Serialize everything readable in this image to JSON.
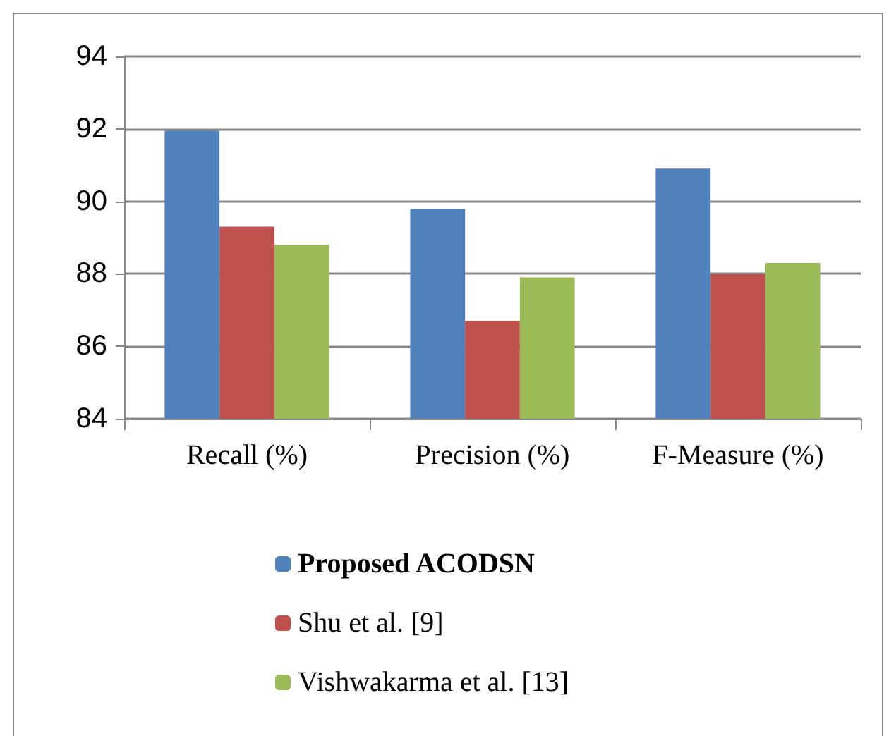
{
  "chart_data": {
    "type": "bar",
    "categories": [
      "Recall (%)",
      "Precision (%)",
      "F-Measure (%)"
    ],
    "series": [
      {
        "name": "Proposed ACODSN",
        "color": "#4f81bd",
        "values": [
          91.95,
          89.8,
          90.9
        ]
      },
      {
        "name": "Shu et al. [9]",
        "color": "#c0504d",
        "values": [
          89.3,
          86.7,
          88.0
        ]
      },
      {
        "name": "Vishwakarma et al. [13]",
        "color": "#9bbb59",
        "values": [
          88.8,
          87.9,
          88.3
        ]
      }
    ],
    "ylim": [
      84,
      94
    ],
    "yticks": [
      84,
      86,
      88,
      90,
      92,
      94
    ],
    "grid": "y",
    "legend": "bottom"
  }
}
